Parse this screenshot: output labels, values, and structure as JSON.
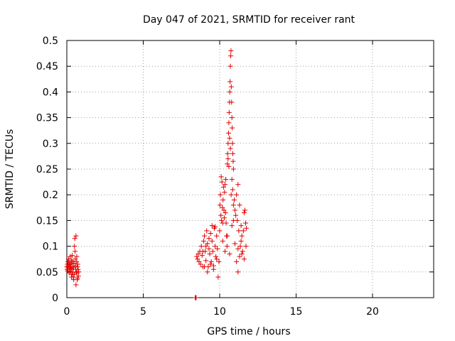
{
  "chart_data": {
    "type": "scatter",
    "title": "Day 047 of 2021, SRMTID for receiver rant",
    "xlabel": "GPS time / hours",
    "ylabel": "SRMTID / TECUs",
    "xlim": [
      0,
      24
    ],
    "ylim": [
      0,
      0.5
    ],
    "x_ticks": [
      0,
      5,
      10,
      15,
      20
    ],
    "y_ticks": [
      0,
      0.05,
      0.1,
      0.15,
      0.2,
      0.25,
      0.3,
      0.35,
      0.4,
      0.45,
      0.5
    ],
    "x_tick_labels": [
      "0",
      "5",
      "10",
      "15",
      "20"
    ],
    "y_tick_labels": [
      "0",
      "0.05",
      "0.1",
      "0.15",
      "0.2",
      "0.25",
      "0.3",
      "0.35",
      "0.4",
      "0.45",
      "0.5"
    ],
    "grid": true,
    "marker": "plus",
    "marker_color": "#e00000",
    "series": [
      {
        "points": [
          [
            0.0,
            0.06
          ],
          [
            0.02,
            0.055
          ],
          [
            0.04,
            0.065
          ],
          [
            0.06,
            0.07
          ],
          [
            0.08,
            0.058
          ],
          [
            0.1,
            0.062
          ],
          [
            0.12,
            0.075
          ],
          [
            0.14,
            0.068
          ],
          [
            0.16,
            0.052
          ],
          [
            0.18,
            0.06
          ],
          [
            0.2,
            0.064
          ],
          [
            0.22,
            0.08
          ],
          [
            0.24,
            0.057
          ],
          [
            0.26,
            0.05
          ],
          [
            0.28,
            0.066
          ],
          [
            0.3,
            0.072
          ],
          [
            0.32,
            0.055
          ],
          [
            0.34,
            0.045
          ],
          [
            0.36,
            0.06
          ],
          [
            0.38,
            0.07
          ],
          [
            0.4,
            0.05
          ],
          [
            0.42,
            0.04
          ],
          [
            0.44,
            0.058
          ],
          [
            0.46,
            0.067
          ],
          [
            0.48,
            0.045
          ],
          [
            0.5,
            0.1
          ],
          [
            0.52,
            0.115
          ],
          [
            0.54,
            0.09
          ],
          [
            0.56,
            0.062
          ],
          [
            0.58,
            0.055
          ],
          [
            0.6,
            0.12
          ],
          [
            0.62,
            0.05
          ],
          [
            0.64,
            0.07
          ],
          [
            0.66,
            0.048
          ],
          [
            0.68,
            0.035
          ],
          [
            0.7,
            0.06
          ],
          [
            0.72,
            0.065
          ],
          [
            0.74,
            0.055
          ],
          [
            0.76,
            0.042
          ],
          [
            0.78,
            0.05
          ],
          [
            0.6,
            0.025
          ],
          [
            0.3,
            0.04
          ],
          [
            0.15,
            0.048
          ],
          [
            0.45,
            0.035
          ],
          [
            0.55,
            0.075
          ],
          [
            0.65,
            0.08
          ],
          [
            0.35,
            0.082
          ],
          [
            0.25,
            0.058
          ],
          [
            0.05,
            0.052
          ],
          [
            0.7,
            0.038
          ],
          [
            8.4,
            0.0
          ],
          [
            8.43,
            0.0
          ],
          [
            8.46,
            0.0
          ],
          [
            8.5,
            0.08
          ],
          [
            8.55,
            0.075
          ],
          [
            8.6,
            0.085
          ],
          [
            8.65,
            0.07
          ],
          [
            8.7,
            0.09
          ],
          [
            8.75,
            0.065
          ],
          [
            8.8,
            0.1
          ],
          [
            8.85,
            0.082
          ],
          [
            8.9,
            0.06
          ],
          [
            8.95,
            0.11
          ],
          [
            9.0,
            0.12
          ],
          [
            9.05,
            0.09
          ],
          [
            9.1,
            0.072
          ],
          [
            9.15,
            0.13
          ],
          [
            9.2,
            0.105
          ],
          [
            9.25,
            0.06
          ],
          [
            9.3,
            0.095
          ],
          [
            9.35,
            0.085
          ],
          [
            9.4,
            0.125
          ],
          [
            9.45,
            0.07
          ],
          [
            9.5,
            0.11
          ],
          [
            9.55,
            0.09
          ],
          [
            9.6,
            0.062
          ],
          [
            9.65,
            0.135
          ],
          [
            9.7,
            0.1
          ],
          [
            9.75,
            0.08
          ],
          [
            9.8,
            0.12
          ],
          [
            9.85,
            0.095
          ],
          [
            9.9,
            0.04
          ],
          [
            9.95,
            0.07
          ],
          [
            9.0,
            0.06
          ],
          [
            9.2,
            0.05
          ],
          [
            9.4,
            0.065
          ],
          [
            9.6,
            0.055
          ],
          [
            9.8,
            0.075
          ],
          [
            9.5,
            0.14
          ],
          [
            9.7,
            0.138
          ],
          [
            9.3,
            0.115
          ],
          [
            9.1,
            0.1
          ],
          [
            8.9,
            0.09
          ],
          [
            10.0,
            0.13
          ],
          [
            10.02,
            0.18
          ],
          [
            10.05,
            0.2
          ],
          [
            10.08,
            0.16
          ],
          [
            10.1,
            0.235
          ],
          [
            10.12,
            0.15
          ],
          [
            10.15,
            0.225
          ],
          [
            10.18,
            0.175
          ],
          [
            10.2,
            0.145
          ],
          [
            10.22,
            0.19
          ],
          [
            10.25,
            0.215
          ],
          [
            10.28,
            0.17
          ],
          [
            10.3,
            0.155
          ],
          [
            10.32,
            0.205
          ],
          [
            10.35,
            0.22
          ],
          [
            10.38,
            0.165
          ],
          [
            10.4,
            0.23
          ],
          [
            10.42,
            0.145
          ],
          [
            10.45,
            0.12
          ],
          [
            10.48,
            0.1
          ],
          [
            10.5,
            0.26
          ],
          [
            10.52,
            0.28
          ],
          [
            10.55,
            0.3
          ],
          [
            10.58,
            0.32
          ],
          [
            10.6,
            0.34
          ],
          [
            10.62,
            0.36
          ],
          [
            10.64,
            0.38
          ],
          [
            10.66,
            0.4
          ],
          [
            10.68,
            0.42
          ],
          [
            10.7,
            0.45
          ],
          [
            10.72,
            0.47
          ],
          [
            10.74,
            0.48
          ],
          [
            10.76,
            0.41
          ],
          [
            10.78,
            0.38
          ],
          [
            10.8,
            0.35
          ],
          [
            10.82,
            0.33
          ],
          [
            10.84,
            0.3
          ],
          [
            10.86,
            0.28
          ],
          [
            10.88,
            0.265
          ],
          [
            10.9,
            0.25
          ],
          [
            10.55,
            0.27
          ],
          [
            10.6,
            0.255
          ],
          [
            10.65,
            0.31
          ],
          [
            10.7,
            0.29
          ],
          [
            10.75,
            0.2
          ],
          [
            10.8,
            0.23
          ],
          [
            10.85,
            0.21
          ],
          [
            10.9,
            0.18
          ],
          [
            10.95,
            0.19
          ],
          [
            11.0,
            0.17
          ],
          [
            11.05,
            0.16
          ],
          [
            11.1,
            0.2
          ],
          [
            11.15,
            0.15
          ],
          [
            11.2,
            0.22
          ],
          [
            11.25,
            0.13
          ],
          [
            11.3,
            0.18
          ],
          [
            11.35,
            0.1
          ],
          [
            11.4,
            0.14
          ],
          [
            11.45,
            0.12
          ],
          [
            11.5,
            0.09
          ],
          [
            11.1,
            0.07
          ],
          [
            11.2,
            0.05
          ],
          [
            11.3,
            0.08
          ],
          [
            11.4,
            0.11
          ],
          [
            11.55,
            0.13
          ],
          [
            11.6,
            0.165
          ],
          [
            11.65,
            0.17
          ],
          [
            11.7,
            0.145
          ],
          [
            11.75,
            0.135
          ],
          [
            11.72,
            0.1
          ],
          [
            10.2,
            0.11
          ],
          [
            10.35,
            0.09
          ],
          [
            10.5,
            0.12
          ],
          [
            10.65,
            0.085
          ],
          [
            10.9,
            0.15
          ],
          [
            11.0,
            0.105
          ],
          [
            11.2,
            0.095
          ],
          [
            11.45,
            0.085
          ],
          [
            11.6,
            0.075
          ],
          [
            10.8,
            0.14
          ]
        ]
      }
    ]
  }
}
